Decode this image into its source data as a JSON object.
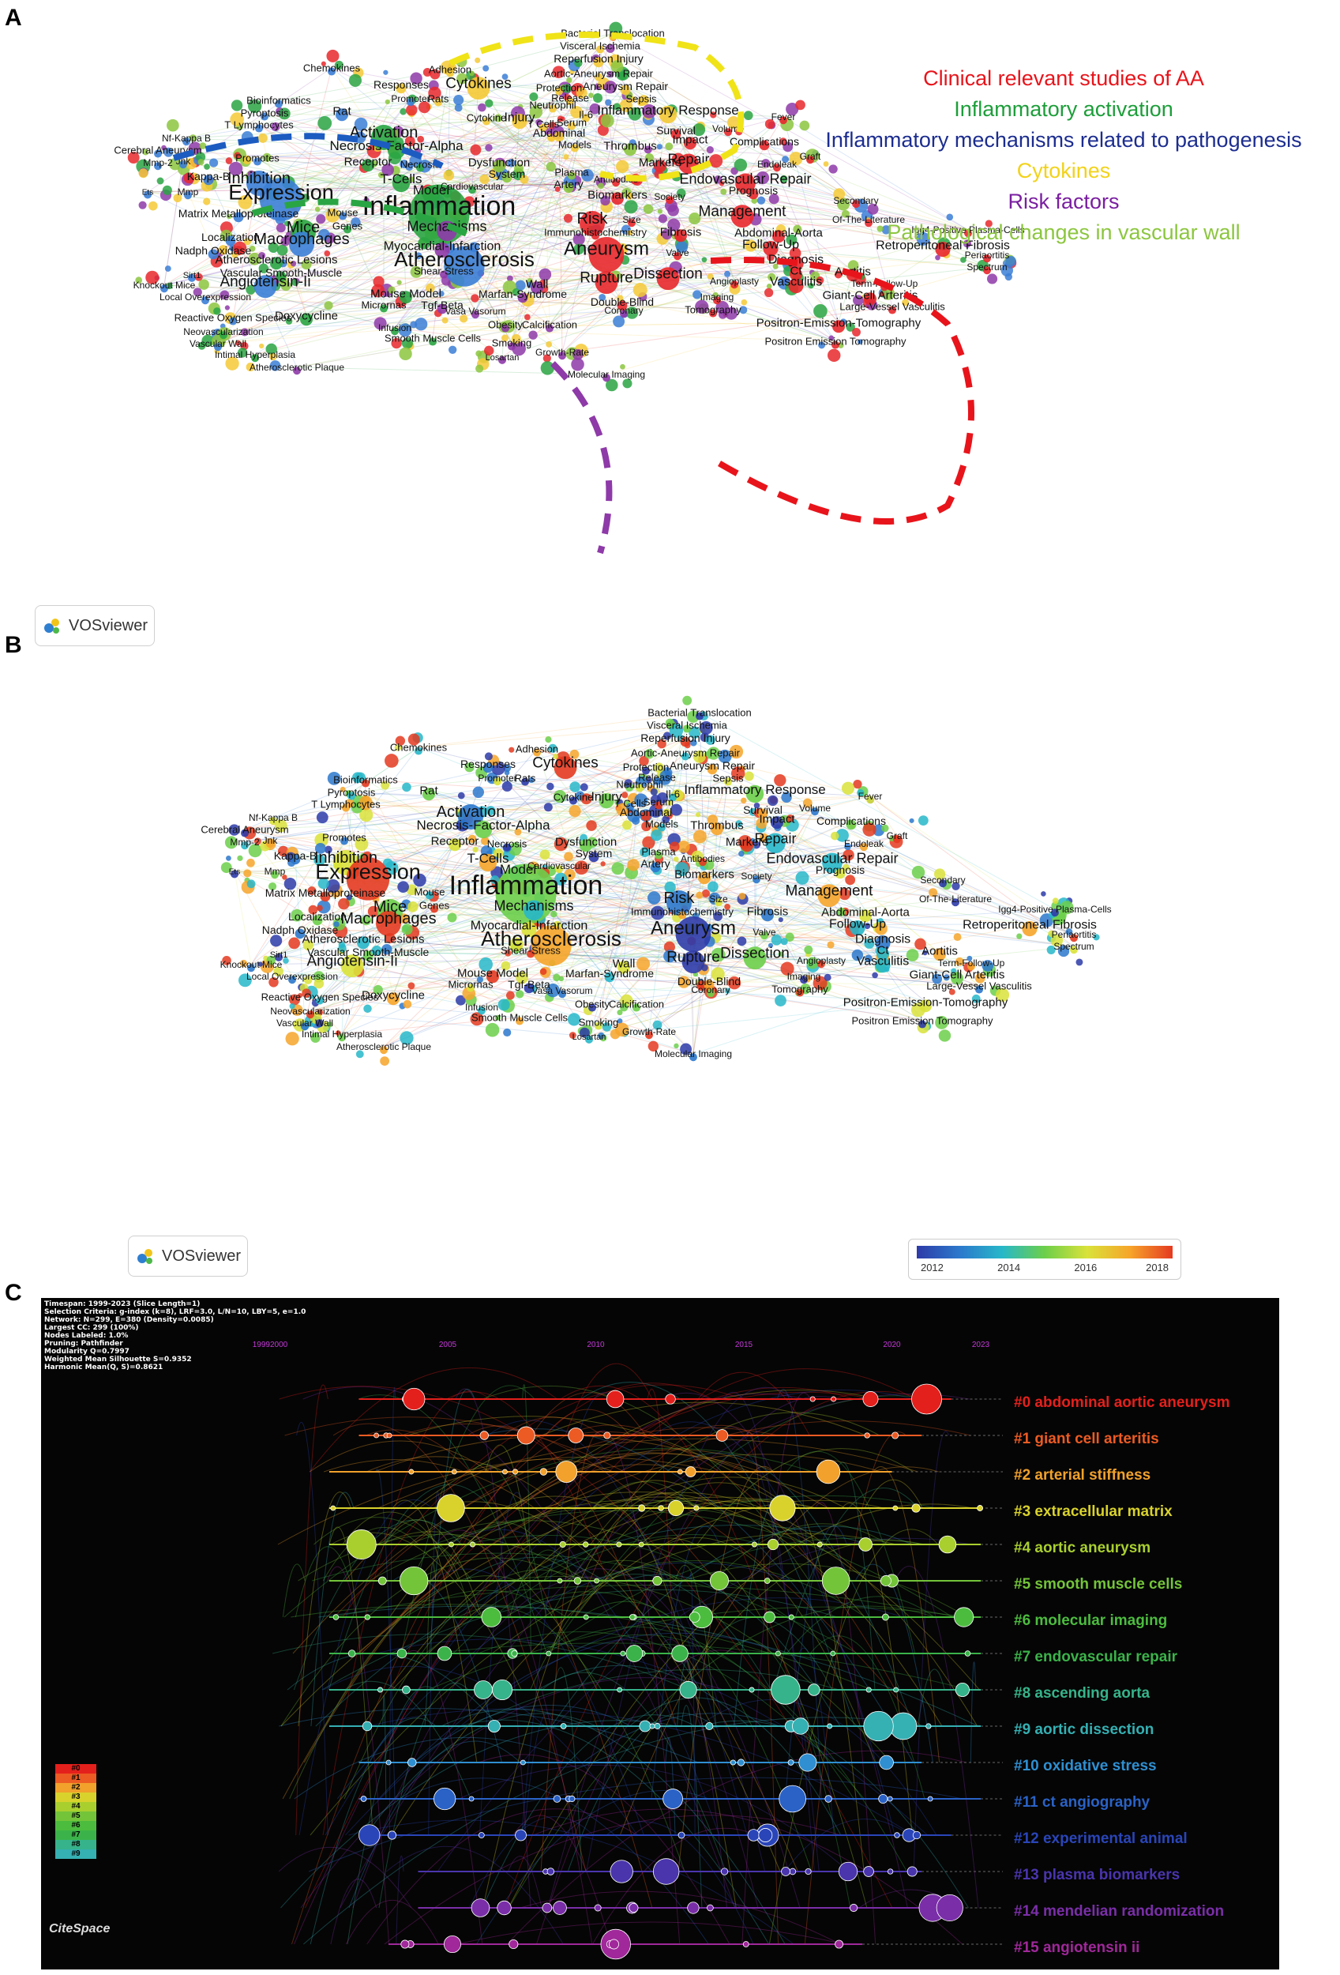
{
  "panels": {
    "a": "A",
    "b": "B",
    "c": "C"
  },
  "legend_a": [
    {
      "label": "Clinical relevant studies of AA",
      "color": "#e8141b"
    },
    {
      "label": "Inflammatory activation",
      "color": "#1d9e3a"
    },
    {
      "label": "Inflammatory mechanisms related to pathogenesis",
      "color": "#1c2d8f"
    },
    {
      "label": "Cytokines",
      "color": "#f2d21a"
    },
    {
      "label": "Risk factors",
      "color": "#7a1fa0"
    },
    {
      "label": "Pathological changes in vascular wall",
      "color": "#8cc63f"
    }
  ],
  "vosviewer_label": "VOSviewer",
  "colorbar": {
    "ticks": [
      "2012",
      "2014",
      "2016",
      "2018"
    ]
  },
  "keywords": [
    {
      "text": "Bacterial Translocation",
      "c": 3,
      "s": 13
    },
    {
      "text": "Visceral Ischemia",
      "c": 3,
      "s": 13
    },
    {
      "text": "Reperfusion Injury",
      "c": 3,
      "s": 14
    },
    {
      "text": "Aortic-Aneurysm Repair",
      "c": 3,
      "s": 13
    },
    {
      "text": "Aneurysm Repair",
      "c": 3,
      "s": 14
    },
    {
      "text": "Release",
      "c": 3,
      "s": 13
    },
    {
      "text": "Sepsis",
      "c": 3,
      "s": 13
    },
    {
      "text": "Protection",
      "c": 3,
      "s": 13
    },
    {
      "text": "Inflammatory Response",
      "c": 3,
      "s": 17
    },
    {
      "text": "Cytokines",
      "c": 3,
      "s": 19
    },
    {
      "text": "Chemokines",
      "c": 2,
      "s": 13
    },
    {
      "text": "Adhesion",
      "c": 3,
      "s": 13
    },
    {
      "text": "Responses",
      "c": 3,
      "s": 14
    },
    {
      "text": "Promoter",
      "c": 2,
      "s": 12
    },
    {
      "text": "Rats",
      "c": 3,
      "s": 13
    },
    {
      "text": "Rat",
      "c": 2,
      "s": 15
    },
    {
      "text": "Bioinformatics",
      "c": 2,
      "s": 13
    },
    {
      "text": "Pyroptosis",
      "c": 2,
      "s": 13
    },
    {
      "text": "T Lymphocytes",
      "c": 2,
      "s": 13
    },
    {
      "text": "T Cells",
      "c": 3,
      "s": 13
    },
    {
      "text": "Neutrophil",
      "c": 3,
      "s": 13
    },
    {
      "text": "Cytokine",
      "c": 3,
      "s": 13
    },
    {
      "text": "Injury",
      "c": 3,
      "s": 16
    },
    {
      "text": "Serum",
      "c": 3,
      "s": 13
    },
    {
      "text": "Il-6",
      "c": 3,
      "s": 13
    },
    {
      "text": "Survival",
      "c": 0,
      "s": 14
    },
    {
      "text": "Volume",
      "c": 0,
      "s": 12
    },
    {
      "text": "Fever",
      "c": 0,
      "s": 12
    },
    {
      "text": "Impact",
      "c": 0,
      "s": 15
    },
    {
      "text": "Complications",
      "c": 0,
      "s": 14
    },
    {
      "text": "Abdominal",
      "c": 3,
      "s": 14
    },
    {
      "text": "Models",
      "c": 3,
      "s": 13
    },
    {
      "text": "Thrombus",
      "c": 5,
      "s": 15
    },
    {
      "text": "Activation",
      "c": 1,
      "s": 20
    },
    {
      "text": "Nf-Kappa B",
      "c": 2,
      "s": 12
    },
    {
      "text": "Cerebral Aneurysm",
      "c": 2,
      "s": 13
    },
    {
      "text": "Necrosis-Factor-Alpha",
      "c": 1,
      "s": 17
    },
    {
      "text": "Graft",
      "c": 0,
      "s": 12
    },
    {
      "text": "Mmp-2",
      "c": 2,
      "s": 12
    },
    {
      "text": "Jnk",
      "c": 2,
      "s": 12
    },
    {
      "text": "Promotes",
      "c": 2,
      "s": 13
    },
    {
      "text": "Receptor",
      "c": 1,
      "s": 15
    },
    {
      "text": "Necrosis",
      "c": 1,
      "s": 13
    },
    {
      "text": "Dysfunction",
      "c": 5,
      "s": 15
    },
    {
      "text": "Markers",
      "c": 0,
      "s": 15
    },
    {
      "text": "Repair",
      "c": 0,
      "s": 18
    },
    {
      "text": "Endoleak",
      "c": 0,
      "s": 12
    },
    {
      "text": "Kappa-B",
      "c": 2,
      "s": 14
    },
    {
      "text": "Inhibition",
      "c": 2,
      "s": 20
    },
    {
      "text": "System",
      "c": 5,
      "s": 14
    },
    {
      "text": "Plasma",
      "c": 5,
      "s": 13
    },
    {
      "text": "Antibodies",
      "c": 0,
      "s": 12
    },
    {
      "text": "Endovascular Repair",
      "c": 0,
      "s": 18
    },
    {
      "text": "T-Cells",
      "c": 1,
      "s": 17
    },
    {
      "text": "Artery",
      "c": 5,
      "s": 14
    },
    {
      "text": "Cardiovascular",
      "c": 1,
      "s": 12
    },
    {
      "text": "Ets",
      "c": 2,
      "s": 10
    },
    {
      "text": "Mmp",
      "c": 2,
      "s": 12
    },
    {
      "text": "Expression",
      "c": 2,
      "s": 27
    },
    {
      "text": "Model",
      "c": 1,
      "s": 17
    },
    {
      "text": "Biomarkers",
      "c": 0,
      "s": 15
    },
    {
      "text": "Society",
      "c": 0,
      "s": 12
    },
    {
      "text": "Prognosis",
      "c": 0,
      "s": 14
    },
    {
      "text": "Secondary",
      "c": 0,
      "s": 12
    },
    {
      "text": "Inflammation",
      "c": 1,
      "s": 34
    },
    {
      "text": "Matrix Metalloproteinase",
      "c": 2,
      "s": 14
    },
    {
      "text": "Mouse",
      "c": 2,
      "s": 13
    },
    {
      "text": "Management",
      "c": 0,
      "s": 19
    },
    {
      "text": "Risk",
      "c": 0,
      "s": 20
    },
    {
      "text": "Size",
      "c": 0,
      "s": 12
    },
    {
      "text": "Of-The-Literature",
      "c": 0,
      "s": 12
    },
    {
      "text": "Mice",
      "c": 1,
      "s": 20
    },
    {
      "text": "Genes",
      "c": 1,
      "s": 13
    },
    {
      "text": "Mechanisms",
      "c": 4,
      "s": 18
    },
    {
      "text": "Immunohistochemistry",
      "c": 0,
      "s": 13
    },
    {
      "text": "Fibrosis",
      "c": 0,
      "s": 15
    },
    {
      "text": "Abdominal-Aorta",
      "c": 0,
      "s": 15
    },
    {
      "text": "Igg4-Positive Plasma-Cells",
      "c": 0,
      "s": 12
    },
    {
      "text": "Localization",
      "c": 2,
      "s": 14
    },
    {
      "text": "Macrophages",
      "c": 2,
      "s": 20
    },
    {
      "text": "Follow-Up",
      "c": 0,
      "s": 16
    },
    {
      "text": "Retroperitoneal Fibrosis",
      "c": 0,
      "s": 16
    },
    {
      "text": "Nadph Oxidase",
      "c": 2,
      "s": 14
    },
    {
      "text": "Myocardial-Infarction",
      "c": 4,
      "s": 16
    },
    {
      "text": "Aneurysm",
      "c": 0,
      "s": 24
    },
    {
      "text": "Valve",
      "c": 0,
      "s": 12
    },
    {
      "text": "Periaortitis",
      "c": 0,
      "s": 12
    },
    {
      "text": "Atherosclerotic Lesions",
      "c": 1,
      "s": 15
    },
    {
      "text": "Atherosclerosis",
      "c": 2,
      "s": 26
    },
    {
      "text": "Diagnosis",
      "c": 0,
      "s": 16
    },
    {
      "text": "Spectrum",
      "c": 0,
      "s": 12
    },
    {
      "text": "Sirt1",
      "c": 2,
      "s": 11
    },
    {
      "text": "Vascular Smooth-Muscle",
      "c": 1,
      "s": 14
    },
    {
      "text": "Shear-Stress",
      "c": 4,
      "s": 13
    },
    {
      "text": "Ct",
      "c": 0,
      "s": 15
    },
    {
      "text": "Aortitis",
      "c": 0,
      "s": 15
    },
    {
      "text": "Knockout Mice",
      "c": 2,
      "s": 12
    },
    {
      "text": "Angiotensin-Ii",
      "c": 2,
      "s": 19
    },
    {
      "text": "Rupture",
      "c": 0,
      "s": 19
    },
    {
      "text": "Dissection",
      "c": 0,
      "s": 19
    },
    {
      "text": "Angioplasty",
      "c": 0,
      "s": 12
    },
    {
      "text": "Vasculitis",
      "c": 0,
      "s": 16
    },
    {
      "text": "Term-Follow-Up",
      "c": 0,
      "s": 12
    },
    {
      "text": "Local Overexpression",
      "c": 2,
      "s": 12
    },
    {
      "text": "Wall",
      "c": 4,
      "s": 15
    },
    {
      "text": "Imaging",
      "c": 0,
      "s": 12
    },
    {
      "text": "Giant-Cell Arteritis",
      "c": 0,
      "s": 15
    },
    {
      "text": "Mouse Model",
      "c": 1,
      "s": 15
    },
    {
      "text": "Marfan-Syndrome",
      "c": 4,
      "s": 14
    },
    {
      "text": "Double-Blind",
      "c": 0,
      "s": 14
    },
    {
      "text": "Large-Vessel Vasculitis",
      "c": 0,
      "s": 13
    },
    {
      "text": "Micrornas",
      "c": 1,
      "s": 13
    },
    {
      "text": "Tgf-Beta",
      "c": 4,
      "s": 14
    },
    {
      "text": "Coronary",
      "c": 4,
      "s": 12
    },
    {
      "text": "Tomography",
      "c": 0,
      "s": 13
    },
    {
      "text": "Reactive Oxygen Species",
      "c": 2,
      "s": 13
    },
    {
      "text": "Doxycycline",
      "c": 1,
      "s": 15
    },
    {
      "text": "Vasa Vasorum",
      "c": 4,
      "s": 12
    },
    {
      "text": "Positron-Emission-Tomography",
      "c": 0,
      "s": 15
    },
    {
      "text": "Obesity",
      "c": 4,
      "s": 13
    },
    {
      "text": "Calcification",
      "c": 4,
      "s": 13
    },
    {
      "text": "Neovascularization",
      "c": 1,
      "s": 12
    },
    {
      "text": "Infusion",
      "c": 1,
      "s": 12
    },
    {
      "text": "Smooth Muscle Cells",
      "c": 1,
      "s": 13
    },
    {
      "text": "Vascular Wall",
      "c": 2,
      "s": 12
    },
    {
      "text": "Smoking",
      "c": 4,
      "s": 13
    },
    {
      "text": "Positron Emission Tomography",
      "c": 0,
      "s": 13
    },
    {
      "text": "Intimal Hyperplasia",
      "c": 1,
      "s": 12
    },
    {
      "text": "Growth-Rate",
      "c": 4,
      "s": 12
    },
    {
      "text": "Losartan",
      "c": 4,
      "s": 11
    },
    {
      "text": "Atherosclerotic Plaque",
      "c": 4,
      "s": 12
    },
    {
      "text": "Molecular Imaging",
      "c": 4,
      "s": 12
    }
  ],
  "citespace": {
    "info": [
      "Timespan: 1999-2023 (Slice Length=1)",
      "Selection Criteria: g-index (k=8), LRF=3.0, L/N=10, LBY=5, e=1.0",
      "Network: N=299, E=380 (Density=0.0085)",
      "Largest CC: 299 (100%)",
      "Nodes Labeled: 1.0%",
      "Pruning: Pathfinder",
      "Modularity Q=0.7997",
      "Weighted Mean Silhouette S=0.9352",
      "Harmonic Mean(Q, S)=0.8621"
    ],
    "years": [
      "19992000",
      "2005",
      "2010",
      "2015",
      "2020",
      "2023"
    ],
    "clusters": [
      {
        "label": "#0 abdominal aortic aneurysm",
        "color": "#e4201c"
      },
      {
        "label": "#1 giant cell arteritis",
        "color": "#ec5b23"
      },
      {
        "label": "#2 arterial stiffness",
        "color": "#f1a12c"
      },
      {
        "label": "#3 extracellular matrix",
        "color": "#d9d22c"
      },
      {
        "label": "#4 aortic aneurysm",
        "color": "#a9cf2f"
      },
      {
        "label": "#5 smooth muscle cells",
        "color": "#74c43a"
      },
      {
        "label": "#6 molecular imaging",
        "color": "#4cbc3f"
      },
      {
        "label": "#7 endovascular repair",
        "color": "#3bb34a"
      },
      {
        "label": "#8 ascending aorta",
        "color": "#36b38a"
      },
      {
        "label": "#9 aortic dissection",
        "color": "#35b0b3"
      },
      {
        "label": "#10 oxidative stress",
        "color": "#2f8fd1"
      },
      {
        "label": "#11 ct angiography",
        "color": "#2a62c6"
      },
      {
        "label": "#12 experimental animal",
        "color": "#2a45b8"
      },
      {
        "label": "#13 plasma biomarkers",
        "color": "#4a35ad"
      },
      {
        "label": "#14 mendelian randomization",
        "color": "#7a2ea8"
      },
      {
        "label": "#15 angiotensin ii",
        "color": "#a0289a"
      }
    ],
    "legend": [
      "#0",
      "#1",
      "#2",
      "#3",
      "#4",
      "#5",
      "#6",
      "#7",
      "#8",
      "#9"
    ],
    "logo": "CiteSpace"
  }
}
